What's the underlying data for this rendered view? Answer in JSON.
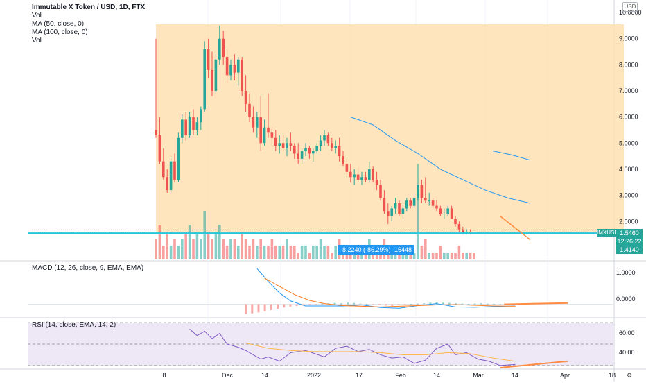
{
  "header": {
    "title": "Immutable X Token / USD, 1D, FTX",
    "indicators": [
      "Vol",
      "MA (50, close, 0)",
      "MA (100, close, 0)",
      "Vol"
    ]
  },
  "currency_label": "USD",
  "colors": {
    "up": "#26a69a",
    "down": "#ef5350",
    "box_fill": "#ffe0b2",
    "ma_line": "#2196f3",
    "trend_line": "#ff8c42",
    "price_line": "#26c6da",
    "macd_line": "#2196f3",
    "signal_line": "#ff7a1a",
    "rsi_line": "#7e57c2",
    "rsi_band": "#ede7f6",
    "badge": "#2196f3"
  },
  "price_badge": {
    "symbol": "IMXUSD",
    "price": "1.5460",
    "countdown": "12:26:22",
    "low_label": "1.4140"
  },
  "measure_label": "-8.2240 (-86.29%) -16448",
  "macd_panel": {
    "title": "MACD (12, 26, close, 9, EMA, EMA)",
    "axis_labels": [
      "1.0000",
      "0.0000"
    ]
  },
  "rsi_panel": {
    "title": "RSI (14, close, EMA, 14, 2)",
    "axis_labels": [
      "60.00",
      "40.00"
    ]
  },
  "chart_data": {
    "type": "candlestick",
    "price_axis": [
      "10.0000",
      "9.0000",
      "8.0000",
      "7.0000",
      "6.0000",
      "5.0000",
      "4.0000",
      "3.0000",
      "2.0000"
    ],
    "x_axis": [
      "8",
      "Dec",
      "14",
      "2022",
      "17",
      "Feb",
      "14",
      "Mar",
      "14",
      "Apr",
      "18"
    ],
    "candles": [
      {
        "o": 5.5,
        "h": 9.0,
        "l": 5.2,
        "c": 5.3
      },
      {
        "o": 5.3,
        "h": 6.0,
        "l": 4.2,
        "c": 4.3
      },
      {
        "o": 4.3,
        "h": 4.8,
        "l": 3.6,
        "c": 3.7
      },
      {
        "o": 3.7,
        "h": 4.0,
        "l": 3.1,
        "c": 3.2
      },
      {
        "o": 3.2,
        "h": 4.5,
        "l": 3.1,
        "c": 4.3
      },
      {
        "o": 4.3,
        "h": 4.6,
        "l": 3.5,
        "c": 3.6
      },
      {
        "o": 3.6,
        "h": 5.4,
        "l": 3.5,
        "c": 5.2
      },
      {
        "o": 5.2,
        "h": 6.1,
        "l": 5.0,
        "c": 5.9
      },
      {
        "o": 5.9,
        "h": 6.2,
        "l": 5.1,
        "c": 5.3
      },
      {
        "o": 5.3,
        "h": 6.2,
        "l": 5.2,
        "c": 6.0
      },
      {
        "o": 6.0,
        "h": 6.3,
        "l": 5.3,
        "c": 5.5
      },
      {
        "o": 5.5,
        "h": 6.0,
        "l": 5.3,
        "c": 5.8
      },
      {
        "o": 5.8,
        "h": 6.4,
        "l": 5.5,
        "c": 6.3
      },
      {
        "o": 6.3,
        "h": 8.9,
        "l": 6.2,
        "c": 8.6
      },
      {
        "o": 8.6,
        "h": 9.0,
        "l": 7.5,
        "c": 7.8
      },
      {
        "o": 7.8,
        "h": 8.5,
        "l": 6.8,
        "c": 7.0
      },
      {
        "o": 7.0,
        "h": 8.4,
        "l": 6.9,
        "c": 8.2
      },
      {
        "o": 8.2,
        "h": 9.5,
        "l": 8.0,
        "c": 9.0
      },
      {
        "o": 9.0,
        "h": 9.3,
        "l": 8.0,
        "c": 8.3
      },
      {
        "o": 8.3,
        "h": 8.6,
        "l": 7.3,
        "c": 7.6
      },
      {
        "o": 7.6,
        "h": 8.2,
        "l": 7.4,
        "c": 8.0
      },
      {
        "o": 8.0,
        "h": 8.4,
        "l": 7.4,
        "c": 7.7
      },
      {
        "o": 7.7,
        "h": 8.3,
        "l": 7.2,
        "c": 8.2
      },
      {
        "o": 8.2,
        "h": 8.3,
        "l": 6.8,
        "c": 7.0
      },
      {
        "o": 7.0,
        "h": 7.6,
        "l": 6.2,
        "c": 6.5
      },
      {
        "o": 6.5,
        "h": 6.9,
        "l": 5.8,
        "c": 6.0
      },
      {
        "o": 6.0,
        "h": 6.4,
        "l": 5.4,
        "c": 5.6
      },
      {
        "o": 5.6,
        "h": 6.2,
        "l": 5.2,
        "c": 6.0
      },
      {
        "o": 6.0,
        "h": 6.8,
        "l": 4.7,
        "c": 5.0
      },
      {
        "o": 5.0,
        "h": 5.9,
        "l": 4.9,
        "c": 5.6
      },
      {
        "o": 5.6,
        "h": 6.9,
        "l": 5.2,
        "c": 5.4
      },
      {
        "o": 5.4,
        "h": 5.6,
        "l": 4.9,
        "c": 5.2
      },
      {
        "o": 5.2,
        "h": 5.5,
        "l": 4.7,
        "c": 4.9
      },
      {
        "o": 4.9,
        "h": 5.3,
        "l": 4.6,
        "c": 5.0
      },
      {
        "o": 5.0,
        "h": 5.3,
        "l": 4.7,
        "c": 4.8
      },
      {
        "o": 4.8,
        "h": 5.2,
        "l": 4.5,
        "c": 5.0
      },
      {
        "o": 5.0,
        "h": 5.4,
        "l": 4.7,
        "c": 4.9
      },
      {
        "o": 4.9,
        "h": 5.0,
        "l": 4.4,
        "c": 4.6
      },
      {
        "o": 4.6,
        "h": 5.0,
        "l": 4.2,
        "c": 4.4
      },
      {
        "o": 4.4,
        "h": 4.8,
        "l": 4.2,
        "c": 4.7
      },
      {
        "o": 4.7,
        "h": 5.0,
        "l": 4.5,
        "c": 4.8
      },
      {
        "o": 4.8,
        "h": 4.9,
        "l": 4.4,
        "c": 4.6
      },
      {
        "o": 4.6,
        "h": 4.8,
        "l": 4.3,
        "c": 4.7
      },
      {
        "o": 4.7,
        "h": 5.0,
        "l": 4.6,
        "c": 4.9
      },
      {
        "o": 4.9,
        "h": 5.3,
        "l": 4.7,
        "c": 5.1
      },
      {
        "o": 5.1,
        "h": 5.5,
        "l": 4.9,
        "c": 5.3
      },
      {
        "o": 5.3,
        "h": 5.4,
        "l": 4.9,
        "c": 5.0
      },
      {
        "o": 5.0,
        "h": 5.2,
        "l": 4.7,
        "c": 4.8
      },
      {
        "o": 4.8,
        "h": 5.1,
        "l": 4.6,
        "c": 4.9
      },
      {
        "o": 4.9,
        "h": 5.2,
        "l": 4.3,
        "c": 4.5
      },
      {
        "o": 4.5,
        "h": 4.7,
        "l": 4.1,
        "c": 4.2
      },
      {
        "o": 4.2,
        "h": 4.4,
        "l": 3.7,
        "c": 3.9
      },
      {
        "o": 3.9,
        "h": 4.2,
        "l": 3.5,
        "c": 3.7
      },
      {
        "o": 3.7,
        "h": 4.0,
        "l": 3.4,
        "c": 3.8
      },
      {
        "o": 3.8,
        "h": 4.1,
        "l": 3.5,
        "c": 3.6
      },
      {
        "o": 3.6,
        "h": 3.9,
        "l": 3.4,
        "c": 3.7
      },
      {
        "o": 3.7,
        "h": 3.9,
        "l": 3.5,
        "c": 3.6
      },
      {
        "o": 3.6,
        "h": 4.3,
        "l": 3.5,
        "c": 4.0
      },
      {
        "o": 4.0,
        "h": 4.1,
        "l": 3.5,
        "c": 3.6
      },
      {
        "o": 3.6,
        "h": 3.9,
        "l": 3.2,
        "c": 3.4
      },
      {
        "o": 3.4,
        "h": 3.6,
        "l": 2.8,
        "c": 2.9
      },
      {
        "o": 2.9,
        "h": 3.2,
        "l": 2.3,
        "c": 2.4
      },
      {
        "o": 2.4,
        "h": 2.7,
        "l": 1.9,
        "c": 2.2
      },
      {
        "o": 2.2,
        "h": 2.6,
        "l": 2.0,
        "c": 2.5
      },
      {
        "o": 2.5,
        "h": 2.9,
        "l": 2.3,
        "c": 2.7
      },
      {
        "o": 2.7,
        "h": 2.8,
        "l": 2.2,
        "c": 2.3
      },
      {
        "o": 2.3,
        "h": 2.7,
        "l": 2.1,
        "c": 2.5
      },
      {
        "o": 2.5,
        "h": 2.9,
        "l": 2.4,
        "c": 2.8
      },
      {
        "o": 2.8,
        "h": 2.9,
        "l": 2.5,
        "c": 2.6
      },
      {
        "o": 2.6,
        "h": 3.0,
        "l": 2.5,
        "c": 2.9
      },
      {
        "o": 2.9,
        "h": 4.2,
        "l": 2.8,
        "c": 3.4
      },
      {
        "o": 3.4,
        "h": 3.6,
        "l": 2.7,
        "c": 2.9
      },
      {
        "o": 2.9,
        "h": 3.7,
        "l": 2.7,
        "c": 2.8
      },
      {
        "o": 2.8,
        "h": 3.1,
        "l": 2.6,
        "c": 2.8
      },
      {
        "o": 2.8,
        "h": 2.9,
        "l": 2.5,
        "c": 2.6
      },
      {
        "o": 2.6,
        "h": 2.8,
        "l": 2.4,
        "c": 2.5
      },
      {
        "o": 2.5,
        "h": 2.6,
        "l": 2.2,
        "c": 2.3
      },
      {
        "o": 2.3,
        "h": 2.5,
        "l": 2.1,
        "c": 2.3
      },
      {
        "o": 2.3,
        "h": 2.6,
        "l": 2.2,
        "c": 2.5
      },
      {
        "o": 2.5,
        "h": 2.6,
        "l": 2.1,
        "c": 2.1
      },
      {
        "o": 2.1,
        "h": 2.2,
        "l": 1.8,
        "c": 1.9
      },
      {
        "o": 1.9,
        "h": 2.0,
        "l": 1.6,
        "c": 1.7
      },
      {
        "o": 1.7,
        "h": 1.8,
        "l": 1.5,
        "c": 1.6
      },
      {
        "o": 1.6,
        "h": 1.7,
        "l": 1.5,
        "c": 1.6
      },
      {
        "o": 1.6,
        "h": 1.7,
        "l": 1.5,
        "c": 1.55
      }
    ],
    "volumes": [
      3,
      5,
      2,
      4,
      2,
      3,
      2,
      3,
      4,
      5,
      3,
      4,
      3,
      7,
      4,
      3,
      4,
      5,
      3,
      2,
      3,
      3,
      2,
      4,
      3,
      2,
      3,
      2,
      3,
      2,
      2,
      3,
      2,
      2,
      2,
      3,
      2,
      2,
      1,
      2,
      2,
      1,
      2,
      2,
      3,
      2,
      2,
      1,
      2,
      3,
      2,
      2,
      2,
      2,
      1,
      2,
      1,
      3,
      1,
      2,
      2,
      3,
      1,
      1,
      2,
      2,
      1,
      2,
      1,
      1,
      9,
      2,
      3,
      1,
      1,
      1,
      2,
      1,
      1,
      1,
      1,
      2,
      1,
      1,
      1,
      1
    ],
    "ma50": [
      [
        52,
        6.0
      ],
      [
        58,
        5.7
      ],
      [
        64,
        5.1
      ],
      [
        70,
        4.6
      ],
      [
        76,
        4.0
      ],
      [
        82,
        3.6
      ],
      [
        88,
        3.2
      ],
      [
        94,
        2.9
      ],
      [
        100,
        2.7
      ]
    ],
    "ma100": [
      [
        90,
        4.7
      ],
      [
        95,
        4.55
      ],
      [
        100,
        4.35
      ]
    ],
    "box": {
      "x_start": 0,
      "x_end": 125,
      "top": 9.55,
      "bottom": 1.55
    },
    "trend_lines": [
      [
        [
          92,
          2.2
        ],
        [
          100,
          1.3
        ]
      ]
    ],
    "price_line": 1.546,
    "macd": {
      "range": [
        -0.35,
        1.25
      ],
      "macd_line": [
        [
          27,
          1.1
        ],
        [
          30,
          0.7
        ],
        [
          33,
          0.35
        ],
        [
          36,
          0.1
        ],
        [
          40,
          -0.05
        ],
        [
          45,
          -0.05
        ],
        [
          50,
          -0.05
        ],
        [
          55,
          -0.02
        ],
        [
          60,
          -0.1
        ],
        [
          65,
          -0.12
        ],
        [
          70,
          -0.04
        ],
        [
          75,
          0.02
        ],
        [
          80,
          -0.08
        ],
        [
          85,
          -0.09
        ],
        [
          90,
          -0.07
        ],
        [
          96,
          -0.05
        ]
      ],
      "signal_line": [
        [
          29,
          0.8
        ],
        [
          33,
          0.55
        ],
        [
          37,
          0.3
        ],
        [
          41,
          0.12
        ],
        [
          45,
          0.02
        ],
        [
          50,
          -0.04
        ],
        [
          55,
          -0.06
        ],
        [
          60,
          -0.08
        ],
        [
          65,
          -0.06
        ],
        [
          70,
          -0.04
        ],
        [
          75,
          -0.02
        ],
        [
          80,
          -0.01
        ],
        [
          85,
          -0.03
        ],
        [
          90,
          -0.05
        ],
        [
          96,
          -0.06
        ]
      ],
      "histogram": [
        -0.3,
        -0.28,
        -0.25,
        -0.22,
        -0.18,
        -0.14,
        -0.1,
        -0.07,
        -0.05,
        -0.04,
        -0.03,
        -0.02,
        0.02,
        0.03,
        0.04,
        0.03,
        0.05,
        0.04,
        0.02,
        0.01,
        -0.02,
        -0.03,
        -0.04,
        -0.05,
        -0.03,
        -0.02,
        0.01,
        0.02,
        0.03,
        0.05,
        0.06,
        0.05,
        0.04,
        0.03,
        0.02,
        0.01,
        0.02,
        0.03,
        0.02,
        0.01,
        0.0,
        -0.01,
        -0.02,
        -0.01
      ],
      "trend_line": [
        [
          93,
          0.0
        ],
        [
          110,
          0.04
        ]
      ]
    },
    "rsi": {
      "range": [
        28,
        72
      ],
      "rsi_line": [
        [
          9,
          64
        ],
        [
          11,
          58
        ],
        [
          13,
          62
        ],
        [
          15,
          55
        ],
        [
          17,
          60
        ],
        [
          19,
          50
        ],
        [
          22,
          47
        ],
        [
          24,
          44
        ],
        [
          26,
          40
        ],
        [
          28,
          36
        ],
        [
          30,
          38
        ],
        [
          33,
          34
        ],
        [
          36,
          42
        ],
        [
          40,
          44
        ],
        [
          45,
          38
        ],
        [
          48,
          46
        ],
        [
          51,
          48
        ],
        [
          54,
          43
        ],
        [
          57,
          45
        ],
        [
          60,
          40
        ],
        [
          63,
          37
        ],
        [
          66,
          38
        ],
        [
          69,
          32
        ],
        [
          72,
          35
        ],
        [
          75,
          46
        ],
        [
          78,
          50
        ],
        [
          80,
          40
        ],
        [
          83,
          42
        ],
        [
          86,
          36
        ],
        [
          89,
          34
        ],
        [
          92,
          30
        ],
        [
          96,
          31
        ]
      ],
      "ema_line": [
        [
          24,
          51
        ],
        [
          30,
          46
        ],
        [
          36,
          44
        ],
        [
          42,
          43
        ],
        [
          48,
          43
        ],
        [
          54,
          43
        ],
        [
          60,
          42
        ],
        [
          66,
          40
        ],
        [
          72,
          40
        ],
        [
          78,
          42
        ],
        [
          84,
          41
        ],
        [
          90,
          37
        ],
        [
          96,
          34
        ]
      ],
      "trend_line": [
        [
          92,
          28
        ],
        [
          110,
          34
        ]
      ]
    }
  }
}
